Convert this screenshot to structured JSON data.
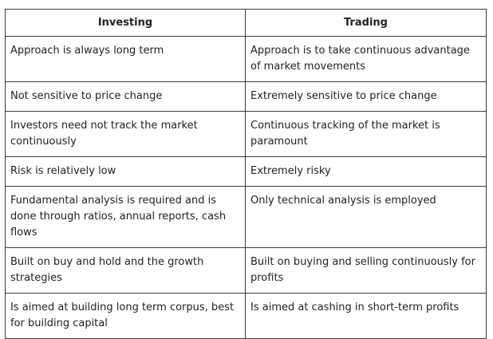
{
  "table": {
    "headers": [
      "Investing",
      "Trading"
    ],
    "rows": [
      [
        "Approach is always long term",
        "Approach is to take continuous advantage of market movements"
      ],
      [
        "Not sensitive to price change",
        "Extremely sensitive to price change"
      ],
      [
        "Investors need not track the market continuously",
        "Continuous tracking of the market is paramount"
      ],
      [
        "Risk is relatively low",
        "Extremely risky"
      ],
      [
        "Fundamental analysis is required and is done through ratios, annual reports, cash flows",
        "Only technical analysis is employed"
      ],
      [
        "Built on buy and hold and the growth strategies",
        "Built on buying and selling continuously for profits"
      ],
      [
        "Is aimed at building long term corpus, best for building capital",
        "Is aimed at cashing in short-term profits"
      ]
    ]
  }
}
